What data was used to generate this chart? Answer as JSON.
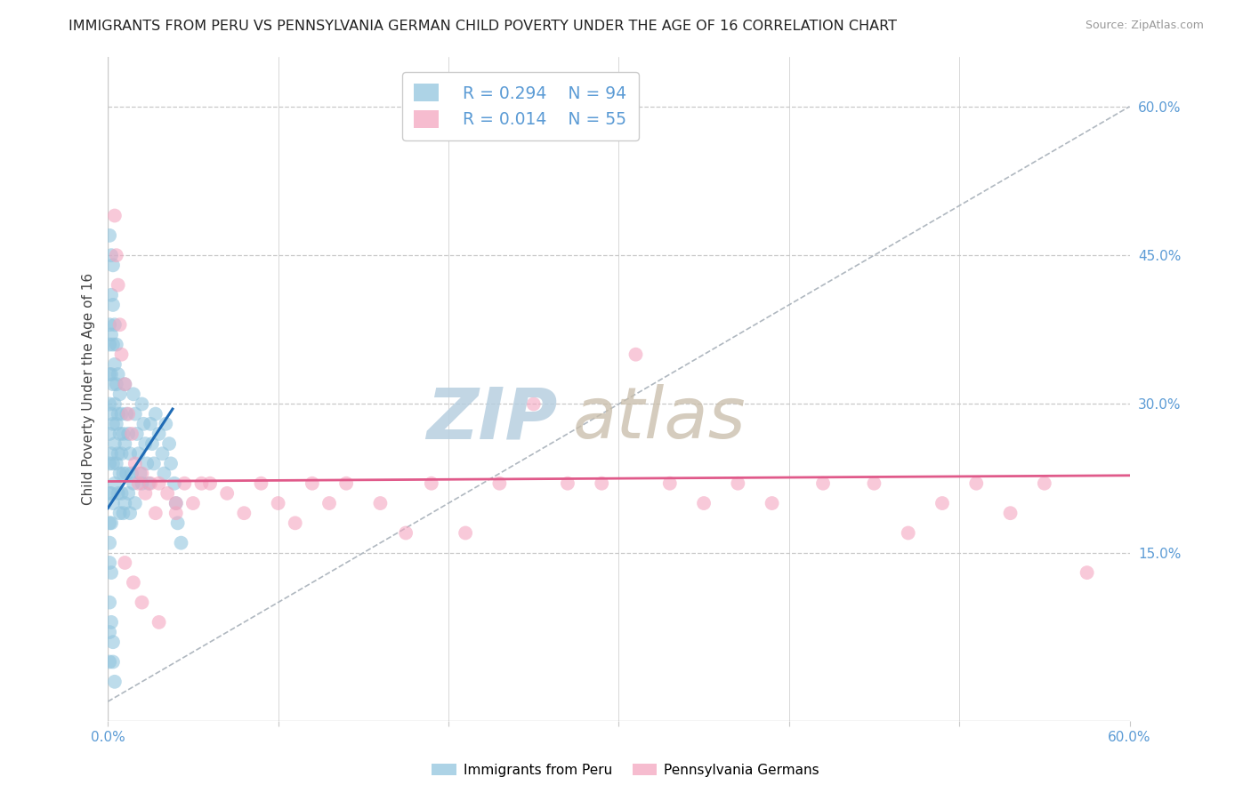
{
  "title": "IMMIGRANTS FROM PERU VS PENNSYLVANIA GERMAN CHILD POVERTY UNDER THE AGE OF 16 CORRELATION CHART",
  "source": "Source: ZipAtlas.com",
  "ylabel": "Child Poverty Under the Age of 16",
  "xlim": [
    0.0,
    0.6
  ],
  "ylim": [
    -0.02,
    0.65
  ],
  "grid_color": "#c8c8c8",
  "legend_r1": "R = 0.294",
  "legend_n1": "N = 94",
  "legend_r2": "R = 0.014",
  "legend_n2": "N = 55",
  "blue_color": "#92c5de",
  "pink_color": "#f4a6c0",
  "line_blue": "#1f6bb5",
  "line_pink": "#e05a8a",
  "axis_color": "#5b9bd5",
  "peru_x": [
    0.001,
    0.001,
    0.001,
    0.001,
    0.001,
    0.001,
    0.001,
    0.001,
    0.001,
    0.001,
    0.001,
    0.001,
    0.001,
    0.002,
    0.002,
    0.002,
    0.002,
    0.002,
    0.002,
    0.002,
    0.002,
    0.003,
    0.003,
    0.003,
    0.003,
    0.003,
    0.003,
    0.003,
    0.004,
    0.004,
    0.004,
    0.004,
    0.004,
    0.005,
    0.005,
    0.005,
    0.005,
    0.006,
    0.006,
    0.006,
    0.006,
    0.007,
    0.007,
    0.007,
    0.007,
    0.008,
    0.008,
    0.008,
    0.009,
    0.009,
    0.009,
    0.01,
    0.01,
    0.01,
    0.011,
    0.011,
    0.012,
    0.012,
    0.013,
    0.013,
    0.014,
    0.015,
    0.015,
    0.016,
    0.016,
    0.017,
    0.018,
    0.019,
    0.02,
    0.02,
    0.021,
    0.022,
    0.023,
    0.024,
    0.025,
    0.026,
    0.027,
    0.028,
    0.03,
    0.032,
    0.033,
    0.034,
    0.036,
    0.037,
    0.039,
    0.04,
    0.041,
    0.043,
    0.001,
    0.002,
    0.002,
    0.003,
    0.003,
    0.004
  ],
  "peru_y": [
    0.38,
    0.36,
    0.33,
    0.3,
    0.27,
    0.24,
    0.21,
    0.18,
    0.16,
    0.14,
    0.1,
    0.07,
    0.04,
    0.41,
    0.37,
    0.33,
    0.29,
    0.25,
    0.21,
    0.18,
    0.13,
    0.44,
    0.4,
    0.36,
    0.32,
    0.28,
    0.24,
    0.2,
    0.38,
    0.34,
    0.3,
    0.26,
    0.22,
    0.36,
    0.32,
    0.28,
    0.24,
    0.33,
    0.29,
    0.25,
    0.21,
    0.31,
    0.27,
    0.23,
    0.19,
    0.29,
    0.25,
    0.21,
    0.27,
    0.23,
    0.19,
    0.32,
    0.26,
    0.2,
    0.29,
    0.23,
    0.27,
    0.21,
    0.25,
    0.19,
    0.23,
    0.31,
    0.22,
    0.29,
    0.2,
    0.27,
    0.25,
    0.23,
    0.3,
    0.22,
    0.28,
    0.26,
    0.24,
    0.22,
    0.28,
    0.26,
    0.24,
    0.29,
    0.27,
    0.25,
    0.23,
    0.28,
    0.26,
    0.24,
    0.22,
    0.2,
    0.18,
    0.16,
    0.47,
    0.45,
    0.08,
    0.06,
    0.04,
    0.02
  ],
  "pagerman_x": [
    0.004,
    0.005,
    0.006,
    0.007,
    0.008,
    0.01,
    0.012,
    0.014,
    0.016,
    0.018,
    0.02,
    0.022,
    0.025,
    0.028,
    0.03,
    0.035,
    0.04,
    0.045,
    0.05,
    0.055,
    0.06,
    0.07,
    0.08,
    0.09,
    0.1,
    0.11,
    0.12,
    0.13,
    0.14,
    0.16,
    0.175,
    0.19,
    0.21,
    0.23,
    0.25,
    0.27,
    0.29,
    0.31,
    0.33,
    0.35,
    0.37,
    0.39,
    0.42,
    0.45,
    0.47,
    0.49,
    0.51,
    0.53,
    0.55,
    0.575,
    0.01,
    0.015,
    0.02,
    0.03,
    0.04
  ],
  "pagerman_y": [
    0.49,
    0.45,
    0.42,
    0.38,
    0.35,
    0.32,
    0.29,
    0.27,
    0.24,
    0.22,
    0.23,
    0.21,
    0.22,
    0.19,
    0.22,
    0.21,
    0.19,
    0.22,
    0.2,
    0.22,
    0.22,
    0.21,
    0.19,
    0.22,
    0.2,
    0.18,
    0.22,
    0.2,
    0.22,
    0.2,
    0.17,
    0.22,
    0.17,
    0.22,
    0.3,
    0.22,
    0.22,
    0.35,
    0.22,
    0.2,
    0.22,
    0.2,
    0.22,
    0.22,
    0.17,
    0.2,
    0.22,
    0.19,
    0.22,
    0.13,
    0.14,
    0.12,
    0.1,
    0.08,
    0.2
  ],
  "blue_line_x": [
    0.0,
    0.038
  ],
  "blue_line_y": [
    0.195,
    0.295
  ],
  "pink_line_x": [
    0.0,
    0.6
  ],
  "pink_line_y": [
    0.222,
    0.228
  ],
  "diag_line_x": [
    0.0,
    0.6
  ],
  "diag_line_y": [
    0.0,
    0.6
  ]
}
